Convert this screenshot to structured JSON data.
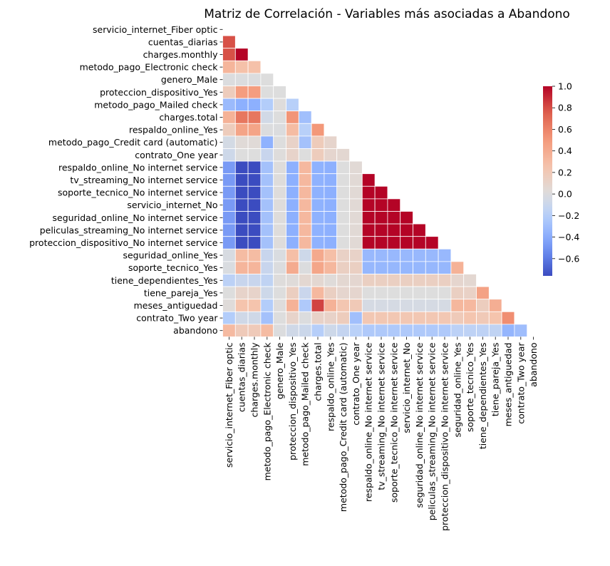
{
  "chart_data": {
    "type": "heatmap",
    "title": "Matriz de Correlación - Variables más asociadas a Abandono",
    "xlabel": "",
    "ylabel": "",
    "mask": "upper-triangle-including-diagonal",
    "colormap": "coolwarm",
    "variables": [
      "servicio_internet_Fiber optic",
      "cuentas_diarias",
      "charges.monthly",
      "metodo_pago_Electronic check",
      "genero_Male",
      "proteccion_dispositivo_Yes",
      "metodo_pago_Mailed check",
      "charges.total",
      "respaldo_online_Yes",
      "metodo_pago_Credit card (automatic)",
      "contrato_One year",
      "respaldo_online_No internet service",
      "tv_streaming_No internet service",
      "soporte_tecnico_No internet service",
      "servicio_internet_No",
      "seguridad_online_No internet service",
      "peliculas_streaming_No internet service",
      "proteccion_dispositivo_No internet service",
      "seguridad_online_Yes",
      "soporte_tecnico_Yes",
      "tiene_dependientes_Yes",
      "tiene_pareja_Yes",
      "meses_antiguedad",
      "contrato_Two year",
      "abandono"
    ],
    "lower_triangle": [
      [],
      [
        0.79
      ],
      [
        0.79,
        1.0
      ],
      [
        0.34,
        0.27,
        0.27
      ],
      [
        -0.01,
        -0.01,
        -0.01,
        0.0
      ],
      [
        0.17,
        0.48,
        0.48,
        -0.0,
        -0.0
      ],
      [
        -0.32,
        -0.38,
        -0.38,
        -0.21,
        0.01,
        -0.19
      ],
      [
        0.36,
        0.65,
        0.65,
        -0.06,
        0.0,
        0.52,
        -0.29
      ],
      [
        0.17,
        0.44,
        0.44,
        -0.01,
        -0.01,
        0.3,
        -0.19,
        0.51
      ],
      [
        -0.05,
        0.03,
        0.03,
        -0.37,
        0.0,
        0.11,
        -0.28,
        0.18,
        0.09
      ],
      [
        -0.08,
        0.0,
        0.0,
        -0.11,
        0.01,
        0.1,
        -0.0,
        0.17,
        0.08,
        0.06
      ],
      [
        -0.47,
        -0.76,
        -0.76,
        -0.28,
        0.01,
        -0.38,
        0.32,
        -0.37,
        -0.38,
        0.0,
        0.04
      ],
      [
        -0.47,
        -0.76,
        -0.76,
        -0.28,
        0.01,
        -0.38,
        0.32,
        -0.37,
        -0.38,
        0.0,
        0.04,
        1.0
      ],
      [
        -0.47,
        -0.76,
        -0.76,
        -0.28,
        0.01,
        -0.38,
        0.32,
        -0.37,
        -0.38,
        0.0,
        0.04,
        1.0,
        1.0
      ],
      [
        -0.47,
        -0.76,
        -0.76,
        -0.28,
        0.01,
        -0.38,
        0.32,
        -0.37,
        -0.38,
        0.0,
        0.04,
        1.0,
        1.0,
        1.0
      ],
      [
        -0.47,
        -0.76,
        -0.76,
        -0.28,
        0.01,
        -0.38,
        0.32,
        -0.37,
        -0.38,
        0.0,
        0.04,
        1.0,
        1.0,
        1.0,
        1.0
      ],
      [
        -0.47,
        -0.76,
        -0.76,
        -0.28,
        0.01,
        -0.38,
        0.32,
        -0.37,
        -0.38,
        0.0,
        0.04,
        1.0,
        1.0,
        1.0,
        1.0,
        1.0
      ],
      [
        -0.47,
        -0.76,
        -0.76,
        -0.28,
        0.01,
        -0.38,
        0.32,
        -0.37,
        -0.38,
        0.0,
        0.04,
        1.0,
        1.0,
        1.0,
        1.0,
        1.0,
        1.0
      ],
      [
        -0.03,
        0.3,
        0.3,
        -0.11,
        -0.02,
        0.28,
        -0.08,
        0.41,
        0.28,
        0.12,
        0.11,
        -0.33,
        -0.33,
        -0.33,
        -0.33,
        -0.33,
        -0.33,
        -0.33
      ],
      [
        -0.02,
        0.34,
        0.34,
        -0.11,
        -0.01,
        0.4,
        -0.01,
        0.43,
        0.33,
        0.14,
        0.14,
        -0.34,
        -0.34,
        -0.34,
        -0.34,
        -0.34,
        -0.34,
        -0.34,
        0.36
      ],
      [
        -0.17,
        -0.11,
        -0.11,
        -0.15,
        0.01,
        0.02,
        0.06,
        0.06,
        0.02,
        0.06,
        0.07,
        0.14,
        0.14,
        0.14,
        0.14,
        0.14,
        0.14,
        0.14,
        0.08,
        0.06
      ],
      [
        0.0,
        0.1,
        0.1,
        -0.08,
        -0.0,
        0.15,
        -0.1,
        0.32,
        0.14,
        0.08,
        0.08,
        0.0,
        0.0,
        0.0,
        0.0,
        0.0,
        0.0,
        0.0,
        0.14,
        0.12,
        0.45
      ],
      [
        0.02,
        0.25,
        0.25,
        -0.21,
        0.01,
        0.36,
        -0.23,
        0.83,
        0.36,
        0.23,
        0.2,
        -0.04,
        -0.04,
        -0.04,
        -0.04,
        -0.04,
        -0.04,
        -0.04,
        0.33,
        0.32,
        0.16,
        0.38
      ],
      [
        -0.21,
        -0.07,
        -0.07,
        -0.28,
        -0.0,
        0.1,
        -0.01,
        0.11,
        0.11,
        0.17,
        -0.29,
        0.22,
        0.22,
        0.22,
        0.22,
        0.22,
        0.22,
        0.22,
        0.19,
        0.24,
        0.2,
        0.25,
        0.55
      ],
      [
        0.31,
        0.19,
        0.19,
        0.3,
        -0.01,
        -0.07,
        -0.09,
        -0.2,
        -0.08,
        -0.13,
        -0.18,
        -0.23,
        -0.23,
        -0.23,
        -0.23,
        -0.23,
        -0.23,
        -0.23,
        -0.17,
        -0.16,
        -0.16,
        -0.15,
        -0.35,
        -0.3
      ]
    ],
    "colorbar": {
      "vmin": -0.76,
      "vmax": 1.0,
      "ticks": [
        -0.6,
        -0.4,
        -0.2,
        0.0,
        0.2,
        0.4,
        0.6,
        0.8,
        1.0
      ],
      "tick_labels": [
        "−0.6",
        "−0.4",
        "−0.2",
        "0.0",
        "0.2",
        "0.4",
        "0.6",
        "0.8",
        "1.0"
      ]
    }
  }
}
